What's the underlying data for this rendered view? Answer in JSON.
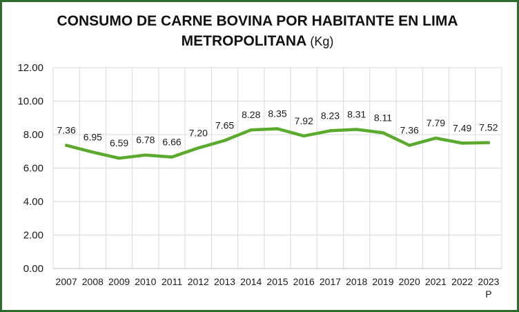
{
  "chart_data": {
    "type": "line",
    "title": "CONSUMO DE CARNE BOVINA POR HABITANTE EN LIMA METROPOLITANA",
    "title_unit": "(Kg)",
    "xlabel": "",
    "ylabel": "",
    "categories": [
      "2007",
      "2008",
      "2009",
      "2010",
      "2011",
      "2012",
      "2013",
      "2014",
      "2015",
      "2016",
      "2017",
      "2018",
      "2019",
      "2020",
      "2021",
      "2022",
      "2023"
    ],
    "category_notes": {
      "2023": "P"
    },
    "series": [
      {
        "values": [
          7.36,
          6.95,
          6.59,
          6.78,
          6.66,
          7.2,
          7.65,
          8.28,
          8.35,
          7.92,
          8.23,
          8.31,
          8.11,
          7.36,
          7.79,
          7.49,
          7.52
        ],
        "labels": [
          "7.36",
          "6.95",
          "6.59",
          "6.78",
          "6.66",
          "7.20",
          "7.65",
          "8.28",
          "8.35",
          "7.92",
          "8.23",
          "8.31",
          "8.11",
          "7.36",
          "7.79",
          "7.49",
          "7.52"
        ]
      }
    ],
    "ylim": [
      0,
      12
    ],
    "yticks": [
      "0.00",
      "2.00",
      "4.00",
      "6.00",
      "8.00",
      "10.00",
      "12.00"
    ],
    "grid": "vertical and horizontal",
    "legend": "none",
    "line_color": "#5aaa2e",
    "frame_color": "#2e6b2e"
  }
}
